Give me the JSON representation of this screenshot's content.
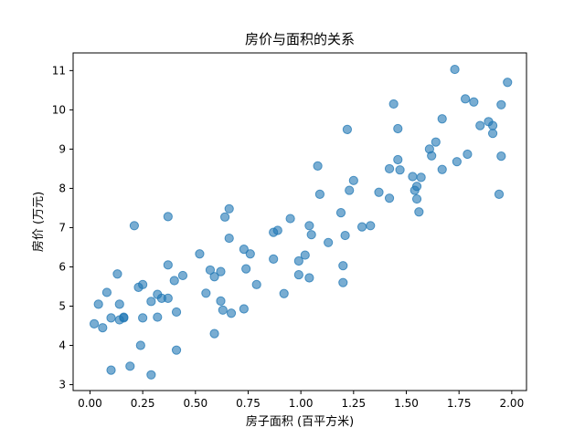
{
  "chart_data": {
    "type": "scatter",
    "title": "房价与面积的关系",
    "xlabel": "房子面积 (百平方米)",
    "ylabel": "房价 (万元)",
    "xlim": [
      -0.08,
      2.07
    ],
    "ylim": [
      2.85,
      11.45
    ],
    "xticks": [
      "0.00",
      "0.25",
      "0.50",
      "0.75",
      "1.00",
      "1.25",
      "1.50",
      "1.75",
      "2.00"
    ],
    "yticks": [
      "3",
      "4",
      "5",
      "6",
      "7",
      "8",
      "9",
      "10",
      "11"
    ],
    "grid": false,
    "marker_color": "#1f77b4",
    "marker_alpha": 0.6,
    "points": [
      [
        0.02,
        4.55
      ],
      [
        0.04,
        5.05
      ],
      [
        0.06,
        4.45
      ],
      [
        0.08,
        5.35
      ],
      [
        0.1,
        4.7
      ],
      [
        0.1,
        3.37
      ],
      [
        0.13,
        5.82
      ],
      [
        0.14,
        4.65
      ],
      [
        0.14,
        5.05
      ],
      [
        0.16,
        4.72
      ],
      [
        0.16,
        4.7
      ],
      [
        0.19,
        3.47
      ],
      [
        0.21,
        7.05
      ],
      [
        0.23,
        5.48
      ],
      [
        0.24,
        4.0
      ],
      [
        0.25,
        5.55
      ],
      [
        0.25,
        4.7
      ],
      [
        0.29,
        5.12
      ],
      [
        0.29,
        3.25
      ],
      [
        0.32,
        5.3
      ],
      [
        0.32,
        4.72
      ],
      [
        0.34,
        5.2
      ],
      [
        0.37,
        7.28
      ],
      [
        0.37,
        5.2
      ],
      [
        0.37,
        6.05
      ],
      [
        0.4,
        5.65
      ],
      [
        0.41,
        3.88
      ],
      [
        0.41,
        4.85
      ],
      [
        0.44,
        5.78
      ],
      [
        0.52,
        6.33
      ],
      [
        0.55,
        5.33
      ],
      [
        0.57,
        5.92
      ],
      [
        0.59,
        4.3
      ],
      [
        0.59,
        5.75
      ],
      [
        0.62,
        5.88
      ],
      [
        0.62,
        5.13
      ],
      [
        0.63,
        4.9
      ],
      [
        0.64,
        7.27
      ],
      [
        0.66,
        7.48
      ],
      [
        0.66,
        6.73
      ],
      [
        0.67,
        4.82
      ],
      [
        0.73,
        4.93
      ],
      [
        0.73,
        6.45
      ],
      [
        0.74,
        5.95
      ],
      [
        0.76,
        6.33
      ],
      [
        0.79,
        5.55
      ],
      [
        0.87,
        6.88
      ],
      [
        0.87,
        6.2
      ],
      [
        0.89,
        6.93
      ],
      [
        0.92,
        5.32
      ],
      [
        0.95,
        7.23
      ],
      [
        0.99,
        5.8
      ],
      [
        0.99,
        6.15
      ],
      [
        1.02,
        6.3
      ],
      [
        1.04,
        5.72
      ],
      [
        1.04,
        7.05
      ],
      [
        1.05,
        6.82
      ],
      [
        1.08,
        8.57
      ],
      [
        1.09,
        7.85
      ],
      [
        1.13,
        6.62
      ],
      [
        1.19,
        7.38
      ],
      [
        1.2,
        5.6
      ],
      [
        1.2,
        6.03
      ],
      [
        1.21,
        6.8
      ],
      [
        1.22,
        9.5
      ],
      [
        1.23,
        7.95
      ],
      [
        1.25,
        8.2
      ],
      [
        1.29,
        7.02
      ],
      [
        1.33,
        7.05
      ],
      [
        1.37,
        7.9
      ],
      [
        1.42,
        8.5
      ],
      [
        1.42,
        7.75
      ],
      [
        1.44,
        10.15
      ],
      [
        1.46,
        9.52
      ],
      [
        1.46,
        8.73
      ],
      [
        1.47,
        8.47
      ],
      [
        1.53,
        8.3
      ],
      [
        1.54,
        7.95
      ],
      [
        1.55,
        7.73
      ],
      [
        1.55,
        8.05
      ],
      [
        1.56,
        7.4
      ],
      [
        1.57,
        8.28
      ],
      [
        1.61,
        9.0
      ],
      [
        1.62,
        8.83
      ],
      [
        1.64,
        9.18
      ],
      [
        1.67,
        8.48
      ],
      [
        1.67,
        9.77
      ],
      [
        1.73,
        11.03
      ],
      [
        1.74,
        8.68
      ],
      [
        1.78,
        10.28
      ],
      [
        1.79,
        8.87
      ],
      [
        1.82,
        10.2
      ],
      [
        1.85,
        9.6
      ],
      [
        1.89,
        9.7
      ],
      [
        1.91,
        9.6
      ],
      [
        1.91,
        9.4
      ],
      [
        1.94,
        7.85
      ],
      [
        1.95,
        10.13
      ],
      [
        1.95,
        8.82
      ],
      [
        1.98,
        10.7
      ]
    ]
  }
}
